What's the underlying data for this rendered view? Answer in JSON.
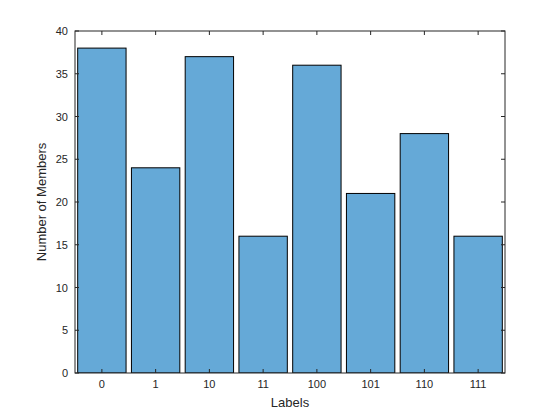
{
  "chart_data": {
    "type": "bar",
    "xlabel": "Labels",
    "ylabel": "Number of Members",
    "categories": [
      "0",
      "1",
      "10",
      "11",
      "100",
      "101",
      "110",
      "111"
    ],
    "values": [
      38,
      24,
      37,
      16,
      36,
      21,
      28,
      16
    ],
    "color": "#65a9d7",
    "ylim": [
      0,
      40
    ],
    "yticks": [
      0,
      5,
      10,
      15,
      20,
      25,
      30,
      35,
      40
    ],
    "grid": false
  }
}
